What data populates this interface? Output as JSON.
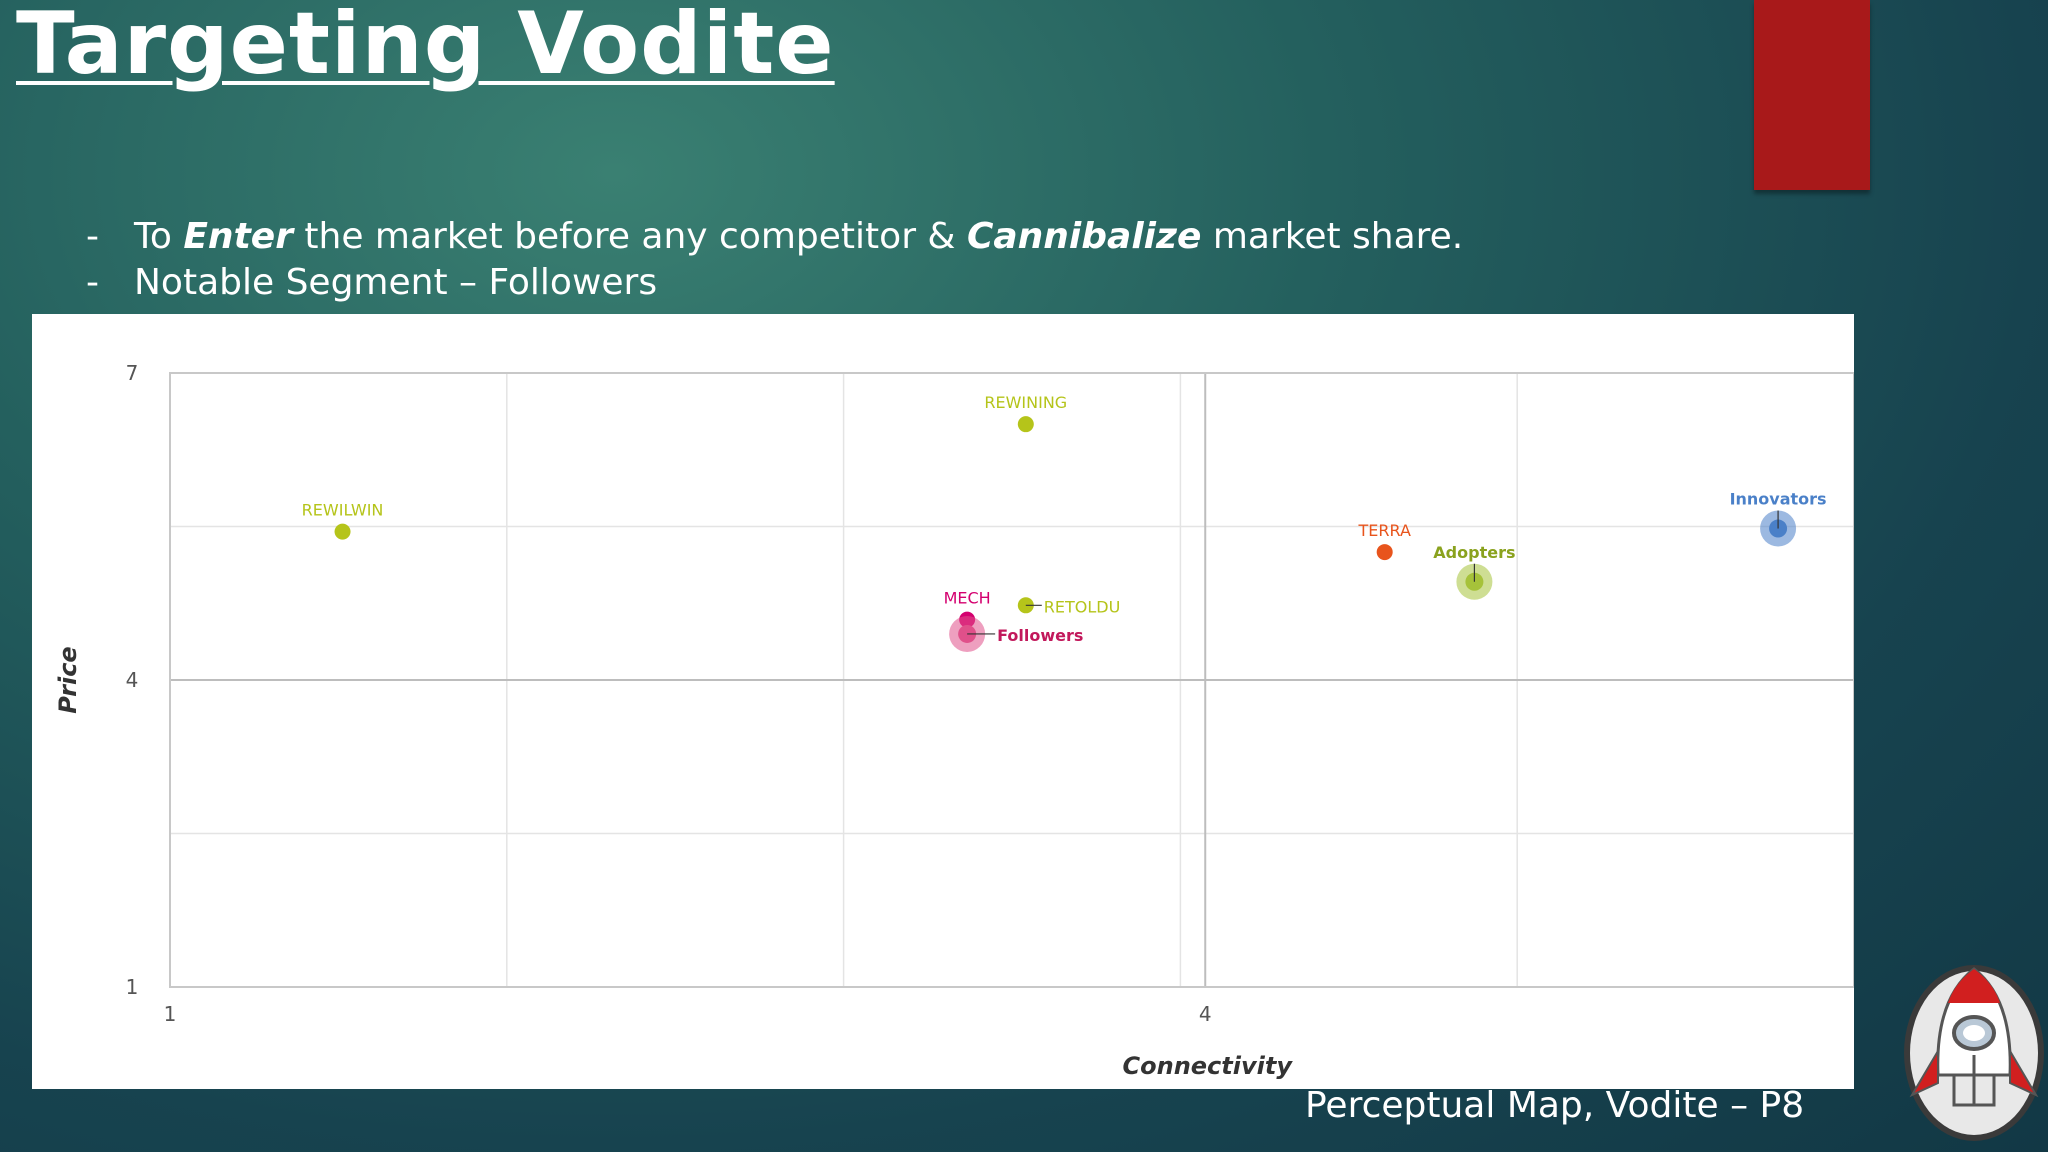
{
  "slide": {
    "title": "Targeting Vodite",
    "bullets": [
      {
        "dash": "-",
        "parts": [
          {
            "text": "To ",
            "em": false
          },
          {
            "text": "Enter",
            "em": true
          },
          {
            "text": " the market before any competitor & ",
            "em": false
          },
          {
            "text": "Cannibalize",
            "em": true
          },
          {
            "text": " market share.",
            "em": false
          }
        ]
      },
      {
        "dash": "-",
        "parts": [
          {
            "text": "Notable Segment – Followers",
            "em": false
          }
        ]
      }
    ],
    "caption": "Perceptual Map, Vodite – P8",
    "accent_color": "#a8191a",
    "logo_icon": "rocket-icon"
  },
  "chart_data": {
    "type": "scatter",
    "xlabel": "Connectivity",
    "ylabel": "Price",
    "xlim": [
      1,
      5.88
    ],
    "ylim": [
      1,
      7
    ],
    "x_ticks": [
      1,
      4
    ],
    "y_ticks": [
      1,
      4,
      7
    ],
    "grid": true,
    "points": [
      {
        "label": "REWILWIN",
        "x": 1.5,
        "y": 5.45,
        "color": "#b5c41a",
        "kind": "product"
      },
      {
        "label": "REWINING",
        "x": 3.48,
        "y": 6.5,
        "color": "#b5c41a",
        "kind": "product"
      },
      {
        "label": "MECH",
        "x": 3.31,
        "y": 4.59,
        "color": "#d4006f",
        "kind": "product"
      },
      {
        "label": "RETOLDU",
        "x": 3.48,
        "y": 4.73,
        "color": "#b5c41a",
        "kind": "product"
      },
      {
        "label": "Followers",
        "x": 3.31,
        "y": 4.45,
        "color": "#e0508a",
        "kind": "segment"
      },
      {
        "label": "TERRA",
        "x": 4.52,
        "y": 5.25,
        "color": "#e8541c",
        "kind": "product"
      },
      {
        "label": "Adopters",
        "x": 4.78,
        "y": 4.96,
        "color": "#a6c23a",
        "kind": "segment"
      },
      {
        "label": "Innovators",
        "x": 5.66,
        "y": 5.48,
        "color": "#4a80c8",
        "kind": "segment"
      }
    ]
  }
}
